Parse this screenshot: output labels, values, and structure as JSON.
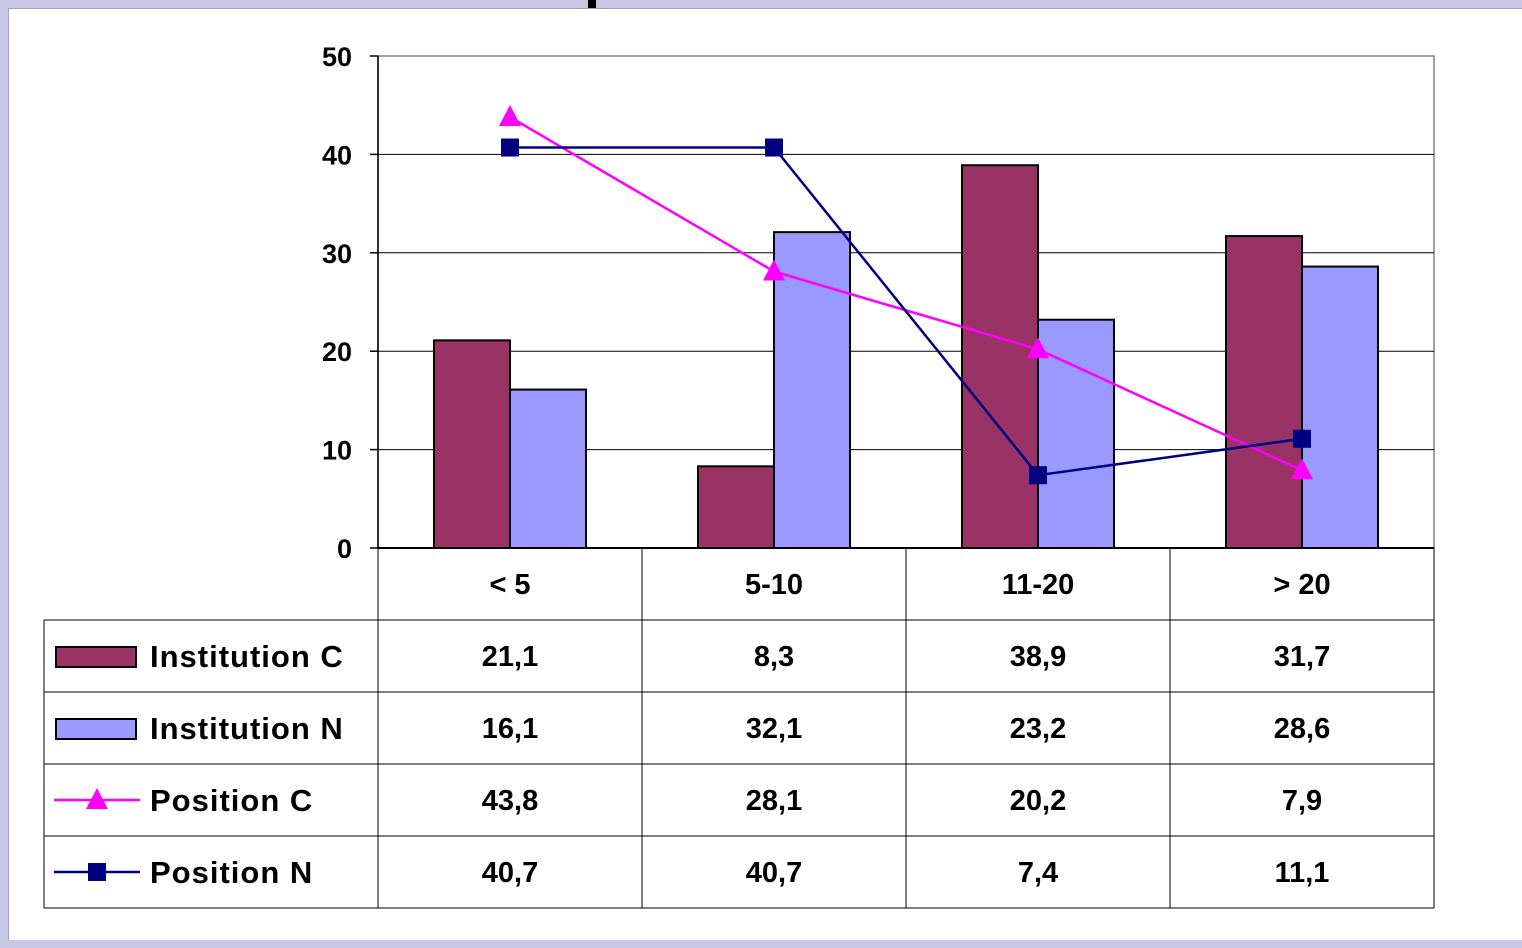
{
  "chart_data": {
    "type": "bar",
    "categories": [
      "< 5",
      "5-10",
      "11-20",
      "> 20"
    ],
    "ylim": [
      0,
      50
    ],
    "yticks": [
      "0",
      "10",
      "20",
      "30",
      "40",
      "50"
    ],
    "grid": true,
    "series": [
      {
        "name": "Institution C",
        "kind": "bar",
        "color": "#993366",
        "values": [
          21.1,
          8.3,
          38.9,
          31.7
        ],
        "labels": [
          "21,1",
          "8,3",
          "38,9",
          "31,7"
        ]
      },
      {
        "name": "Institution N",
        "kind": "bar",
        "color": "#9999ff",
        "values": [
          16.1,
          32.1,
          23.2,
          28.6
        ],
        "labels": [
          "16,1",
          "32,1",
          "23,2",
          "28,6"
        ]
      },
      {
        "name": "Position C",
        "kind": "line",
        "marker": "triangle",
        "color": "#ff00ff",
        "values": [
          43.8,
          28.1,
          20.2,
          7.9
        ],
        "labels": [
          "43,8",
          "28,1",
          "20,2",
          "7,9"
        ]
      },
      {
        "name": "Position N",
        "kind": "line",
        "marker": "square",
        "color": "#000080",
        "values": [
          40.7,
          40.7,
          7.4,
          11.1
        ],
        "labels": [
          "40,7",
          "40,7",
          "7,4",
          "11,1"
        ]
      }
    ]
  }
}
